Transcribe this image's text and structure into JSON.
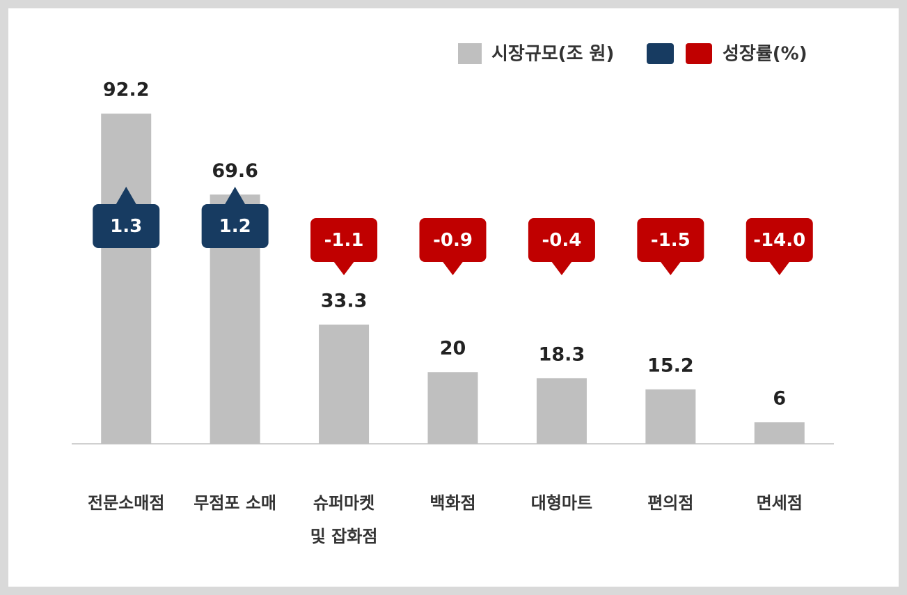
{
  "chart_data": {
    "type": "bar",
    "categories": [
      "전문소매점",
      "무점포 소매",
      "슈퍼마켓\n및 잡화점",
      "백화점",
      "대형마트",
      "편의점",
      "면세점"
    ],
    "series": [
      {
        "name": "시장규모(조 원)",
        "color": "#bfbfbf",
        "values": [
          92.2,
          69.6,
          33.3,
          20,
          18.3,
          15.2,
          6
        ]
      },
      {
        "name": "성장률(%)",
        "color": "#c00000",
        "positive_color": "#173b61",
        "values": [
          1.3,
          1.2,
          -1.1,
          -0.9,
          -0.4,
          -1.5,
          -14.0
        ],
        "value_labels": [
          "1.3",
          "1.2",
          "-1.1",
          "-0.9",
          "-0.4",
          "-1.5",
          "-14.0"
        ]
      }
    ],
    "ylim": [
      0,
      100
    ]
  }
}
